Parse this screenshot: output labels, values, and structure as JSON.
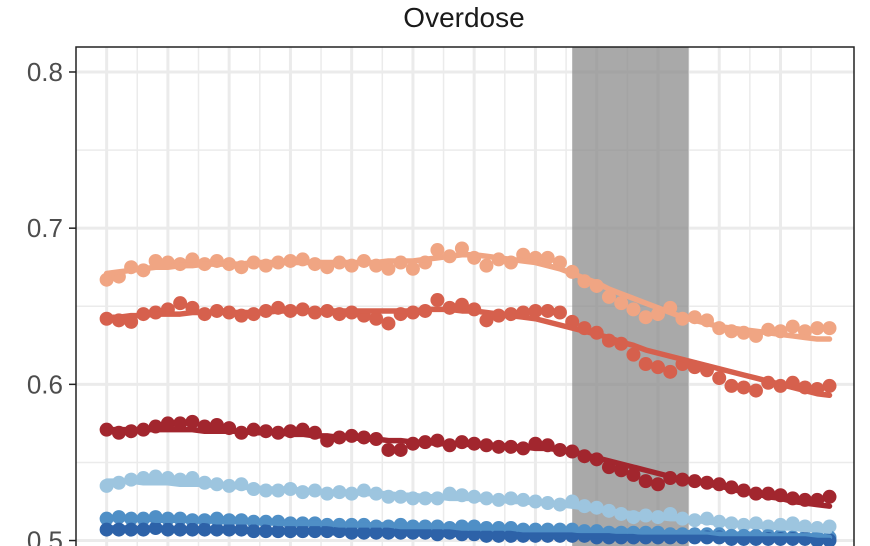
{
  "chart_data": {
    "type": "scatter",
    "title": "Overdose",
    "xlabel": "",
    "ylabel": "",
    "x": [
      1,
      2,
      3,
      4,
      5,
      6,
      7,
      8,
      9,
      10,
      11,
      12,
      13,
      14,
      15,
      16,
      17,
      18,
      19,
      20,
      21,
      22,
      23,
      24,
      25,
      26,
      27,
      28,
      29,
      30,
      31,
      32,
      33,
      34,
      35,
      36,
      37,
      38,
      39,
      40,
      41,
      42,
      43,
      44,
      45,
      46,
      47,
      48,
      49,
      50,
      51,
      52,
      53,
      54,
      55,
      56,
      57,
      58,
      59,
      60
    ],
    "xlim": [
      -1.5,
      62.0
    ],
    "ylim": [
      0.4965,
      0.816
    ],
    "yticks": [
      0.5,
      0.6,
      0.7,
      0.8
    ],
    "ytick_labels": [
      "0.5",
      "0.6",
      "0.7",
      "0.8"
    ],
    "grid": true,
    "shaded_region": [
      39,
      48.5
    ],
    "series": [
      {
        "color": "#F0A583",
        "values": [
          0.667,
          0.669,
          0.675,
          0.673,
          0.679,
          0.678,
          0.677,
          0.68,
          0.677,
          0.679,
          0.677,
          0.675,
          0.678,
          0.676,
          0.678,
          0.679,
          0.68,
          0.677,
          0.675,
          0.678,
          0.676,
          0.679,
          0.676,
          0.674,
          0.678,
          0.674,
          0.678,
          0.686,
          0.682,
          0.687,
          0.681,
          0.676,
          0.68,
          0.678,
          0.683,
          0.681,
          0.681,
          0.678,
          0.672,
          0.666,
          0.663,
          0.656,
          0.652,
          0.648,
          0.643,
          0.645,
          0.649,
          0.642,
          0.643,
          0.641,
          0.636,
          0.634,
          0.633,
          0.631,
          0.635,
          0.634,
          0.637,
          0.634,
          0.636,
          0.636
        ],
        "fit": [
          0.671,
          0.672,
          0.673,
          0.674,
          0.675,
          0.675,
          0.676,
          0.676,
          0.677,
          0.677,
          0.677,
          0.677,
          0.678,
          0.678,
          0.678,
          0.678,
          0.678,
          0.678,
          0.678,
          0.678,
          0.678,
          0.678,
          0.678,
          0.679,
          0.679,
          0.679,
          0.68,
          0.681,
          0.682,
          0.683,
          0.683,
          0.682,
          0.681,
          0.68,
          0.679,
          0.678,
          0.676,
          0.674,
          0.671,
          0.668,
          0.665,
          0.661,
          0.658,
          0.655,
          0.652,
          0.649,
          0.646,
          0.643,
          0.641,
          0.639,
          0.637,
          0.636,
          0.635,
          0.634,
          0.633,
          0.632,
          0.631,
          0.63,
          0.629,
          0.629
        ]
      },
      {
        "color": "#D6604D",
        "values": [
          0.642,
          0.641,
          0.64,
          0.645,
          0.646,
          0.648,
          0.652,
          0.649,
          0.645,
          0.647,
          0.646,
          0.644,
          0.645,
          0.647,
          0.649,
          0.647,
          0.648,
          0.646,
          0.647,
          0.645,
          0.646,
          0.644,
          0.642,
          0.639,
          0.645,
          0.646,
          0.647,
          0.654,
          0.649,
          0.651,
          0.648,
          0.641,
          0.644,
          0.645,
          0.646,
          0.647,
          0.647,
          0.646,
          0.64,
          0.636,
          0.633,
          0.628,
          0.626,
          0.619,
          0.613,
          0.611,
          0.608,
          0.613,
          0.611,
          0.609,
          0.604,
          0.599,
          0.598,
          0.596,
          0.601,
          0.599,
          0.601,
          0.598,
          0.597,
          0.599
        ],
        "fit": [
          0.643,
          0.643,
          0.644,
          0.644,
          0.645,
          0.645,
          0.645,
          0.646,
          0.646,
          0.646,
          0.646,
          0.646,
          0.646,
          0.646,
          0.647,
          0.647,
          0.647,
          0.647,
          0.647,
          0.647,
          0.647,
          0.647,
          0.647,
          0.647,
          0.647,
          0.647,
          0.648,
          0.648,
          0.648,
          0.647,
          0.647,
          0.646,
          0.645,
          0.644,
          0.643,
          0.642,
          0.64,
          0.638,
          0.636,
          0.634,
          0.632,
          0.63,
          0.627,
          0.625,
          0.622,
          0.62,
          0.618,
          0.616,
          0.614,
          0.612,
          0.61,
          0.608,
          0.606,
          0.604,
          0.602,
          0.6,
          0.598,
          0.596,
          0.594,
          0.593
        ]
      },
      {
        "color": "#A2262E",
        "values": [
          0.571,
          0.569,
          0.57,
          0.571,
          0.573,
          0.575,
          0.575,
          0.576,
          0.573,
          0.574,
          0.572,
          0.569,
          0.571,
          0.57,
          0.569,
          0.57,
          0.571,
          0.569,
          0.564,
          0.566,
          0.567,
          0.566,
          0.565,
          0.558,
          0.558,
          0.562,
          0.563,
          0.564,
          0.561,
          0.563,
          0.562,
          0.561,
          0.56,
          0.56,
          0.559,
          0.562,
          0.561,
          0.558,
          0.557,
          0.554,
          0.552,
          0.547,
          0.545,
          0.542,
          0.538,
          0.536,
          0.54,
          0.539,
          0.538,
          0.537,
          0.536,
          0.534,
          0.532,
          0.53,
          0.53,
          0.529,
          0.527,
          0.526,
          0.526,
          0.528
        ],
        "fit": [
          0.571,
          0.571,
          0.571,
          0.571,
          0.571,
          0.571,
          0.571,
          0.571,
          0.57,
          0.57,
          0.57,
          0.57,
          0.569,
          0.569,
          0.569,
          0.568,
          0.568,
          0.567,
          0.567,
          0.566,
          0.566,
          0.565,
          0.565,
          0.564,
          0.564,
          0.563,
          0.563,
          0.562,
          0.562,
          0.562,
          0.561,
          0.561,
          0.561,
          0.56,
          0.56,
          0.559,
          0.559,
          0.558,
          0.557,
          0.555,
          0.553,
          0.551,
          0.549,
          0.547,
          0.545,
          0.543,
          0.541,
          0.539,
          0.538,
          0.536,
          0.535,
          0.533,
          0.531,
          0.53,
          0.528,
          0.527,
          0.525,
          0.524,
          0.523,
          0.522
        ]
      },
      {
        "color": "#9DC5DF",
        "values": [
          0.535,
          0.537,
          0.539,
          0.54,
          0.541,
          0.54,
          0.539,
          0.54,
          0.537,
          0.536,
          0.535,
          0.536,
          0.533,
          0.532,
          0.532,
          0.533,
          0.531,
          0.532,
          0.53,
          0.531,
          0.53,
          0.532,
          0.53,
          0.528,
          0.528,
          0.527,
          0.527,
          0.527,
          0.53,
          0.529,
          0.528,
          0.527,
          0.526,
          0.527,
          0.526,
          0.525,
          0.524,
          0.523,
          0.525,
          0.522,
          0.521,
          0.519,
          0.517,
          0.515,
          0.516,
          0.515,
          0.517,
          0.514,
          0.513,
          0.514,
          0.512,
          0.511,
          0.51,
          0.511,
          0.509,
          0.51,
          0.511,
          0.509,
          0.508,
          0.509
        ],
        "fit": [
          0.538,
          0.538,
          0.538,
          0.537,
          0.537,
          0.537,
          0.536,
          0.536,
          0.536,
          0.535,
          0.535,
          0.534,
          0.534,
          0.533,
          0.533,
          0.533,
          0.532,
          0.532,
          0.531,
          0.531,
          0.531,
          0.53,
          0.53,
          0.53,
          0.529,
          0.529,
          0.528,
          0.528,
          0.527,
          0.527,
          0.527,
          0.526,
          0.526,
          0.525,
          0.525,
          0.524,
          0.524,
          0.523,
          0.522,
          0.521,
          0.52,
          0.519,
          0.518,
          0.517,
          0.516,
          0.515,
          0.514,
          0.514,
          0.513,
          0.512,
          0.511,
          0.511,
          0.51,
          0.509,
          0.509,
          0.508,
          0.508,
          0.507,
          0.507,
          0.506
        ]
      },
      {
        "color": "#4F8FC6",
        "values": [
          0.514,
          0.515,
          0.514,
          0.514,
          0.515,
          0.514,
          0.514,
          0.513,
          0.513,
          0.514,
          0.513,
          0.513,
          0.512,
          0.512,
          0.512,
          0.511,
          0.511,
          0.511,
          0.51,
          0.51,
          0.51,
          0.51,
          0.509,
          0.509,
          0.51,
          0.509,
          0.509,
          0.509,
          0.508,
          0.509,
          0.509,
          0.508,
          0.508,
          0.508,
          0.507,
          0.507,
          0.507,
          0.507,
          0.507,
          0.506,
          0.506,
          0.505,
          0.505,
          0.505,
          0.505,
          0.505,
          0.504,
          0.504,
          0.504,
          0.504,
          0.504,
          0.503,
          0.503,
          0.503,
          0.503,
          0.503,
          0.502,
          0.502,
          0.502,
          0.502
        ],
        "fit": [
          0.514,
          0.514,
          0.514,
          0.514,
          0.513,
          0.513,
          0.513,
          0.513,
          0.513,
          0.512,
          0.512,
          0.512,
          0.512,
          0.512,
          0.511,
          0.511,
          0.511,
          0.511,
          0.511,
          0.51,
          0.51,
          0.51,
          0.51,
          0.51,
          0.509,
          0.509,
          0.509,
          0.509,
          0.509,
          0.508,
          0.508,
          0.508,
          0.508,
          0.508,
          0.507,
          0.507,
          0.507,
          0.507,
          0.507,
          0.506,
          0.506,
          0.506,
          0.506,
          0.506,
          0.505,
          0.505,
          0.505,
          0.505,
          0.505,
          0.504,
          0.504,
          0.504,
          0.504,
          0.504,
          0.503,
          0.503,
          0.503,
          0.503,
          0.503,
          0.502
        ]
      },
      {
        "color": "#2D62A8",
        "values": [
          0.507,
          0.507,
          0.507,
          0.507,
          0.508,
          0.507,
          0.507,
          0.507,
          0.507,
          0.507,
          0.507,
          0.507,
          0.506,
          0.506,
          0.506,
          0.506,
          0.506,
          0.506,
          0.506,
          0.506,
          0.505,
          0.505,
          0.505,
          0.505,
          0.505,
          0.505,
          0.505,
          0.504,
          0.505,
          0.504,
          0.504,
          0.503,
          0.503,
          0.503,
          0.503,
          0.503,
          0.503,
          0.503,
          0.503,
          0.503,
          0.502,
          0.502,
          0.502,
          0.502,
          0.502,
          0.502,
          0.502,
          0.502,
          0.502,
          0.502,
          0.502,
          0.501,
          0.501,
          0.501,
          0.501,
          0.501,
          0.501,
          0.501,
          0.5,
          0.5
        ],
        "fit": [
          0.508,
          0.508,
          0.508,
          0.507,
          0.507,
          0.507,
          0.507,
          0.507,
          0.507,
          0.507,
          0.507,
          0.506,
          0.506,
          0.506,
          0.506,
          0.506,
          0.506,
          0.506,
          0.505,
          0.505,
          0.505,
          0.505,
          0.505,
          0.505,
          0.505,
          0.505,
          0.504,
          0.504,
          0.504,
          0.504,
          0.504,
          0.504,
          0.504,
          0.504,
          0.503,
          0.503,
          0.503,
          0.503,
          0.503,
          0.503,
          0.503,
          0.503,
          0.502,
          0.502,
          0.502,
          0.502,
          0.502,
          0.502,
          0.502,
          0.502,
          0.501,
          0.501,
          0.501,
          0.501,
          0.501,
          0.501,
          0.501,
          0.501,
          0.5,
          0.5
        ]
      }
    ]
  },
  "colors": {
    "panel_border": "#222222",
    "grid": "#ebebeb",
    "shade": "#8c8c8c"
  }
}
